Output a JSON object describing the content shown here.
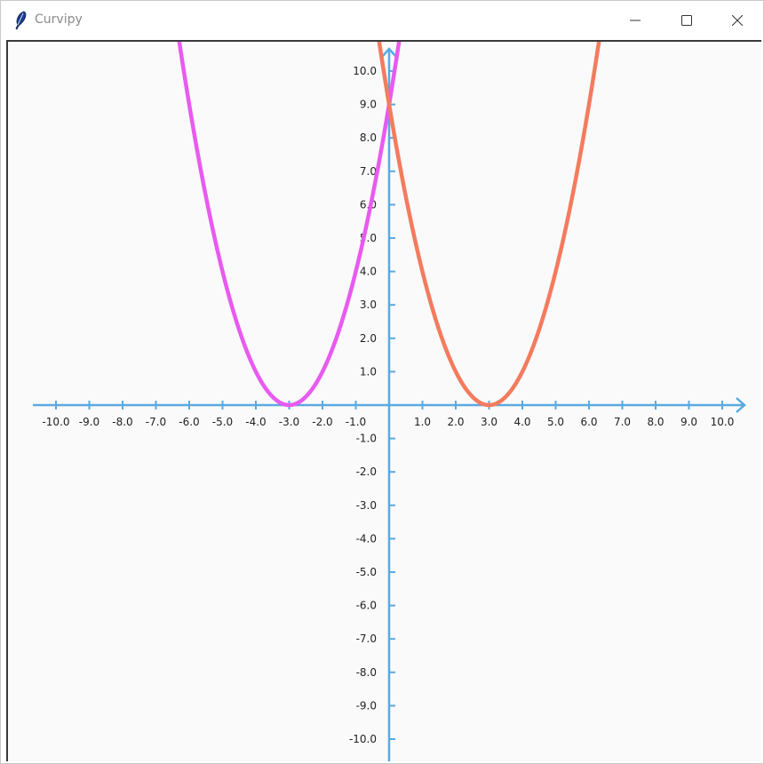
{
  "window": {
    "title": "Curvipy",
    "icons": {
      "app": "feather-icon",
      "minimize": "minimize-icon",
      "maximize": "maximize-icon",
      "close": "close-icon"
    }
  },
  "chart_data": {
    "type": "line",
    "x_axis": {
      "range": [
        -10,
        10
      ],
      "tick_labels": [
        "-10.0",
        "-9.0",
        "-8.0",
        "-7.0",
        "-6.0",
        "-5.0",
        "-4.0",
        "-3.0",
        "-2.0",
        "-1.0",
        "1.0",
        "2.0",
        "3.0",
        "4.0",
        "5.0",
        "6.0",
        "7.0",
        "8.0",
        "9.0",
        "10.0"
      ]
    },
    "y_axis": {
      "range": [
        -10,
        10
      ],
      "tick_labels": [
        "10.0",
        "9.0",
        "8.0",
        "7.0",
        "6.0",
        "5.0",
        "4.0",
        "3.0",
        "2.0",
        "1.0",
        "-1.0",
        "-2.0",
        "-3.0",
        "-4.0",
        "-5.0",
        "-6.0",
        "-7.0",
        "-8.0",
        "-9.0",
        "-10.0"
      ]
    },
    "grid": false,
    "series": [
      {
        "color": "#e85af0",
        "formula_points": "y = (x + 3)^2",
        "vertex": [
          -3,
          0
        ],
        "x_range": [
          -7.0,
          1.0
        ]
      },
      {
        "color": "#f47b5e",
        "formula_points": "y = (x - 3)^2",
        "vertex": [
          3,
          0
        ],
        "x_range": [
          -1.0,
          7.0
        ]
      }
    ],
    "axis_color": "#5aa9e0"
  }
}
